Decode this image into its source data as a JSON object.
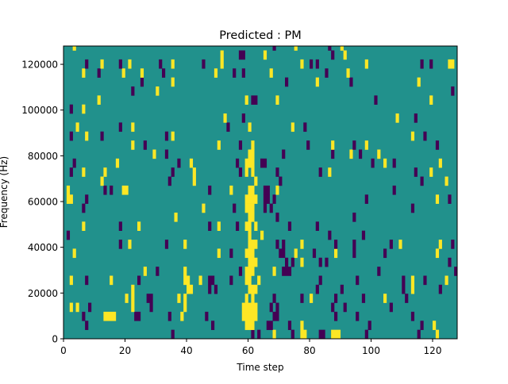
{
  "chart_data": {
    "type": "heatmap",
    "title": "Predicted : PM",
    "xlabel": "Time step",
    "ylabel": "Frequency (Hz)",
    "xlim": [
      0,
      128
    ],
    "ylim": [
      0,
      128000
    ],
    "xticks": [
      0,
      20,
      40,
      60,
      80,
      100,
      120
    ],
    "yticks": [
      0,
      20000,
      40000,
      60000,
      80000,
      100000,
      120000
    ],
    "columns": 128,
    "row_height_hz": 3940,
    "colors": {
      "background": "#21918c",
      "high": "#fde725",
      "low": "#440154"
    },
    "value_legend": {
      "Y": "high (yellow)",
      "P": "low (purple)",
      "default": "mid (teal)"
    },
    "rows_from_bottom": [
      "P35 P61 P63 Y68 P74 Y77-78 P83-84 Y87-89 P98 P115 Y121",
      "P7 P48 Y59-61 P66-67 P73 Y77 P99 P116 Y120",
      "P6 Y13-16 P23-24 P34 Y38 P46 Y58-62 P68-69 P88 P95 P113",
      "Y2 Y4 P8 Y22 P28 Y39 Y58-62 P67 P69 P87 P91 P106",
      "Y20 Y22 P27-28 Y37 Y39 Y59 Y61 P68 P77 Y80 P88 P97 Y104 P111",
      "Y22 Y40-41 P47 P49 Y60-62 P82 P90 P110 Y113 P122",
      "Y2 P7 Y15 P24 Y39-40 Y44 P47-48 P54 Y59-60 Y63 P83 P95 P110 Y113 P117 Y124",
      "Y26 P30 Y39 P57 Y59-61 Y68 P71-73 P102 P127",
      "Y60-62 P72 P74 Y77 P83 P85 P125",
      "Y3 Y50 P54 Y59-61 P70-71 Y75 P81 Y88 P94 P104 Y121",
      "P18 Y21 P33 Y39 Y60-62 P69 P71 Y77 P88 P94 P106 Y109 Y122 P126",
      "P1 Y60 Y64 P86 P97",
      "Y6 P18 Y24 P47 Y50 P56 Y59-60 Y62 P73 P82",
      "Y36 Y60-61 P69 P94",
      "P6 Y45 P55 Y59-61 P65 P67 P113",
      "Y1-2 P7 Y59-62 P65-66 P68 P98 Y121 P125",
      "Y1 P13 P15 Y19-20 P47 Y54 Y60-61 P65-66 Y69 P107",
      "Y12 P34 Y42 Y62 P70 P116 Y124",
      "P2 Y6 Y13 P35 Y42 P57 Y59 Y61 P69 P83 Y86 P114 Y119",
      "P3 Y17 P37 Y41 P56 Y59-61 P64-65 P100 Y104 P107 Y122",
      "Y29 P33 Y60-61 P71 P87 Y93 P96 Y102",
      "Y22 P26 Y50 P57 Y61 P79 Y87 P94 Y98 P121",
      "P2 Y7 P12 P33 Y35 Y113 P117",
      "Y4 P18 Y22 P53 Y60 Y74 P78",
      "Y52 P58 Y108 P114",
      "P2 Y6",
      "Y11 Y59 P61-62 Y69 P101 Y119",
      "P22 Y30 P126",
      "P25 Y35 P72 Y82 P93 Y115",
      "Y6 P11 Y19 Y25 P32 Y49 P55 P58 Y67 P85 Y92",
      "P7 Y12 P18 Y21 P31 Y35 P45 Y51 Y77 P80 P82 Y98 P116 P119 Y125-126",
      "Y51 P57-58 Y65 P87 Y91",
      "Y3 P68 Y75 P86 Y90"
    ]
  }
}
